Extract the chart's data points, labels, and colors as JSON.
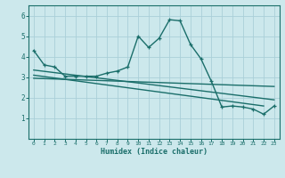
{
  "xlabel": "Humidex (Indice chaleur)",
  "ylabel": "",
  "background_color": "#cce8ec",
  "line_color": "#1a6e6a",
  "grid_color": "#aacfd8",
  "xlim": [
    -0.5,
    23.5
  ],
  "ylim": [
    0,
    6.5
  ],
  "xticks": [
    0,
    1,
    2,
    3,
    4,
    5,
    6,
    7,
    8,
    9,
    10,
    11,
    12,
    13,
    14,
    15,
    16,
    17,
    18,
    19,
    20,
    21,
    22,
    23
  ],
  "yticks": [
    1,
    2,
    3,
    4,
    5,
    6
  ],
  "series1_x": [
    0,
    1,
    2,
    3,
    4,
    5,
    6,
    7,
    8,
    9,
    10,
    11,
    12,
    13,
    14,
    15,
    16,
    17,
    18,
    19,
    20,
    21,
    22,
    23
  ],
  "series1_y": [
    4.3,
    3.6,
    3.5,
    3.05,
    3.05,
    3.05,
    3.05,
    3.2,
    3.3,
    3.5,
    5.0,
    4.45,
    4.9,
    5.8,
    5.75,
    4.6,
    3.9,
    2.8,
    1.55,
    1.6,
    1.55,
    1.45,
    1.2,
    1.6
  ],
  "series2_x": [
    0,
    23
  ],
  "series2_y": [
    3.35,
    1.9
  ],
  "series3_x": [
    0,
    22
  ],
  "series3_y": [
    3.1,
    1.6
  ],
  "series4_x": [
    0,
    23
  ],
  "series4_y": [
    2.95,
    2.55
  ]
}
